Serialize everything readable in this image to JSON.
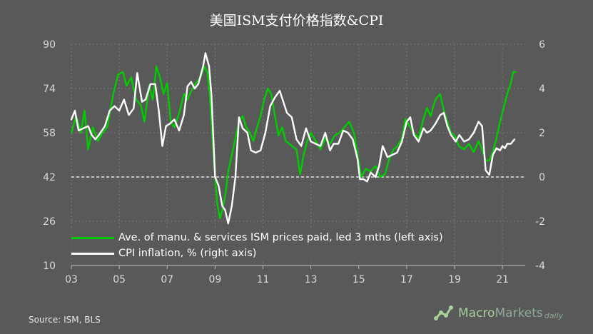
{
  "title": "美国ISM支付价格指数&CPI",
  "source": "Source:  ISM,  BLS",
  "brand": {
    "part1": "Macro",
    "part2": "Markets",
    "part3": "daily"
  },
  "icons": {
    "brand_logo": "line-chart-logo-icon"
  },
  "legend": [
    {
      "label": "Ave. of manu. & services ISM prices paid, led 3 mths (left axis)",
      "color": "#00cc00"
    },
    {
      "label": "CPI inflation,  % (right  axis)",
      "color": "#ffffff"
    }
  ],
  "chart_data": {
    "type": "line",
    "title": "美国ISM支付价格指数&CPI",
    "x_range": [
      2003.0,
      2021.95
    ],
    "x_ticks": [
      2003,
      2005,
      2007,
      2009,
      2011,
      2013,
      2015,
      2017,
      2019,
      2021
    ],
    "x_tick_labels": [
      "03",
      "05",
      "07",
      "09",
      "11",
      "13",
      "15",
      "17",
      "19",
      "21"
    ],
    "y_left": {
      "range": [
        10,
        90
      ],
      "ticks": [
        10,
        26,
        42,
        58,
        74,
        90
      ]
    },
    "y_right": {
      "range": [
        -4,
        6
      ],
      "ticks": [
        -4,
        -2,
        0,
        2,
        4,
        6
      ]
    },
    "zero_line_right": 0,
    "grid": true,
    "legend_position": "bottom-left",
    "series": [
      {
        "name": "Ave. of manu. & services ISM prices paid, led 3 mths (left axis)",
        "axis": "left",
        "color": "#00cc00",
        "points": [
          [
            2003.0,
            58
          ],
          [
            2003.2,
            64
          ],
          [
            2003.4,
            58
          ],
          [
            2003.55,
            66
          ],
          [
            2003.7,
            52
          ],
          [
            2003.9,
            60
          ],
          [
            2004.1,
            55
          ],
          [
            2004.3,
            58
          ],
          [
            2004.5,
            60
          ],
          [
            2004.75,
            72
          ],
          [
            2004.95,
            79
          ],
          [
            2005.15,
            80
          ],
          [
            2005.3,
            75
          ],
          [
            2005.5,
            78
          ],
          [
            2005.7,
            70
          ],
          [
            2005.9,
            68
          ],
          [
            2006.05,
            62
          ],
          [
            2006.25,
            75
          ],
          [
            2006.4,
            70
          ],
          [
            2006.55,
            82
          ],
          [
            2006.7,
            78
          ],
          [
            2006.85,
            72
          ],
          [
            2007.0,
            76
          ],
          [
            2007.15,
            62
          ],
          [
            2007.3,
            60
          ],
          [
            2007.5,
            65
          ],
          [
            2007.7,
            72
          ],
          [
            2007.85,
            70
          ],
          [
            2008.0,
            73
          ],
          [
            2008.2,
            76
          ],
          [
            2008.4,
            78
          ],
          [
            2008.55,
            82
          ],
          [
            2008.68,
            80
          ],
          [
            2008.78,
            72
          ],
          [
            2008.9,
            55
          ],
          [
            2009.0,
            42
          ],
          [
            2009.1,
            32
          ],
          [
            2009.2,
            27
          ],
          [
            2009.3,
            30
          ],
          [
            2009.42,
            35
          ],
          [
            2009.55,
            44
          ],
          [
            2009.7,
            50
          ],
          [
            2009.85,
            56
          ],
          [
            2010.0,
            62
          ],
          [
            2010.15,
            64
          ],
          [
            2010.3,
            60
          ],
          [
            2010.45,
            58
          ],
          [
            2010.6,
            55
          ],
          [
            2010.75,
            60
          ],
          [
            2010.9,
            64
          ],
          [
            2011.05,
            70
          ],
          [
            2011.2,
            74
          ],
          [
            2011.35,
            72
          ],
          [
            2011.5,
            64
          ],
          [
            2011.65,
            57
          ],
          [
            2011.8,
            60
          ],
          [
            2011.95,
            55
          ],
          [
            2012.1,
            54
          ],
          [
            2012.25,
            53
          ],
          [
            2012.4,
            52
          ],
          [
            2012.55,
            43
          ],
          [
            2012.7,
            50
          ],
          [
            2012.85,
            55
          ],
          [
            2013.0,
            58
          ],
          [
            2013.2,
            55
          ],
          [
            2013.4,
            52
          ],
          [
            2013.6,
            56
          ],
          [
            2013.8,
            54
          ],
          [
            2014.0,
            57
          ],
          [
            2014.2,
            58
          ],
          [
            2014.4,
            60
          ],
          [
            2014.6,
            62
          ],
          [
            2014.8,
            58
          ],
          [
            2014.95,
            50
          ],
          [
            2015.1,
            42
          ],
          [
            2015.3,
            45
          ],
          [
            2015.5,
            44
          ],
          [
            2015.7,
            46
          ],
          [
            2015.9,
            42
          ],
          [
            2016.1,
            43
          ],
          [
            2016.25,
            48
          ],
          [
            2016.45,
            52
          ],
          [
            2016.6,
            53
          ],
          [
            2016.8,
            56
          ],
          [
            2016.95,
            63
          ],
          [
            2017.15,
            60
          ],
          [
            2017.3,
            58
          ],
          [
            2017.5,
            56
          ],
          [
            2017.7,
            63
          ],
          [
            2017.85,
            67
          ],
          [
            2018.0,
            64
          ],
          [
            2018.2,
            70
          ],
          [
            2018.4,
            72
          ],
          [
            2018.55,
            66
          ],
          [
            2018.7,
            62
          ],
          [
            2018.85,
            58
          ],
          [
            2019.0,
            57
          ],
          [
            2019.2,
            53
          ],
          [
            2019.4,
            52
          ],
          [
            2019.6,
            54
          ],
          [
            2019.8,
            51
          ],
          [
            2020.0,
            55
          ],
          [
            2020.15,
            52
          ],
          [
            2020.3,
            48
          ],
          [
            2020.45,
            48
          ],
          [
            2020.6,
            51
          ],
          [
            2020.75,
            56
          ],
          [
            2020.9,
            62
          ],
          [
            2021.05,
            67
          ],
          [
            2021.2,
            72
          ],
          [
            2021.35,
            76
          ],
          [
            2021.45,
            80
          ],
          [
            2021.55,
            80
          ]
        ]
      },
      {
        "name": "CPI inflation,  % (right  axis)",
        "axis": "right",
        "color": "#ffffff",
        "points": [
          [
            2003.0,
            2.6
          ],
          [
            2003.15,
            3.0
          ],
          [
            2003.3,
            2.1
          ],
          [
            2003.5,
            2.2
          ],
          [
            2003.7,
            2.3
          ],
          [
            2003.85,
            1.9
          ],
          [
            2004.0,
            1.7
          ],
          [
            2004.15,
            1.9
          ],
          [
            2004.4,
            2.3
          ],
          [
            2004.6,
            3.0
          ],
          [
            2004.8,
            3.2
          ],
          [
            2005.0,
            3.0
          ],
          [
            2005.2,
            3.5
          ],
          [
            2005.4,
            2.8
          ],
          [
            2005.6,
            3.1
          ],
          [
            2005.75,
            4.7
          ],
          [
            2005.95,
            3.4
          ],
          [
            2006.1,
            3.5
          ],
          [
            2006.3,
            4.2
          ],
          [
            2006.5,
            4.2
          ],
          [
            2006.65,
            3.0
          ],
          [
            2006.8,
            1.4
          ],
          [
            2006.95,
            2.3
          ],
          [
            2007.1,
            2.4
          ],
          [
            2007.3,
            2.6
          ],
          [
            2007.5,
            2.1
          ],
          [
            2007.7,
            2.8
          ],
          [
            2007.85,
            4.1
          ],
          [
            2008.0,
            4.3
          ],
          [
            2008.15,
            4.0
          ],
          [
            2008.3,
            4.2
          ],
          [
            2008.5,
            5.0
          ],
          [
            2008.6,
            5.6
          ],
          [
            2008.75,
            5.0
          ],
          [
            2008.85,
            3.7
          ],
          [
            2009.0,
            0.0
          ],
          [
            2009.15,
            -0.4
          ],
          [
            2009.3,
            -1.3
          ],
          [
            2009.42,
            -1.5
          ],
          [
            2009.55,
            -2.1
          ],
          [
            2009.7,
            -1.3
          ],
          [
            2009.85,
            0.0
          ],
          [
            2010.0,
            2.7
          ],
          [
            2010.15,
            2.2
          ],
          [
            2010.35,
            2.0
          ],
          [
            2010.5,
            1.2
          ],
          [
            2010.7,
            1.1
          ],
          [
            2010.9,
            1.2
          ],
          [
            2011.1,
            2.0
          ],
          [
            2011.3,
            3.2
          ],
          [
            2011.5,
            3.6
          ],
          [
            2011.7,
            3.9
          ],
          [
            2011.85,
            3.4
          ],
          [
            2012.0,
            2.9
          ],
          [
            2012.2,
            2.7
          ],
          [
            2012.4,
            1.7
          ],
          [
            2012.6,
            1.4
          ],
          [
            2012.8,
            2.2
          ],
          [
            2013.0,
            1.6
          ],
          [
            2013.2,
            1.5
          ],
          [
            2013.4,
            1.4
          ],
          [
            2013.6,
            2.0
          ],
          [
            2013.8,
            1.2
          ],
          [
            2013.95,
            1.5
          ],
          [
            2014.15,
            1.5
          ],
          [
            2014.35,
            2.1
          ],
          [
            2014.55,
            2.0
          ],
          [
            2014.75,
            1.7
          ],
          [
            2014.95,
            0.8
          ],
          [
            2015.05,
            -0.1
          ],
          [
            2015.2,
            -0.1
          ],
          [
            2015.35,
            -0.2
          ],
          [
            2015.5,
            0.2
          ],
          [
            2015.7,
            0.0
          ],
          [
            2015.85,
            0.5
          ],
          [
            2016.0,
            1.4
          ],
          [
            2016.2,
            0.9
          ],
          [
            2016.4,
            1.0
          ],
          [
            2016.6,
            1.1
          ],
          [
            2016.8,
            1.6
          ],
          [
            2017.0,
            2.5
          ],
          [
            2017.15,
            2.7
          ],
          [
            2017.3,
            1.9
          ],
          [
            2017.5,
            1.6
          ],
          [
            2017.7,
            2.2
          ],
          [
            2017.85,
            2.0
          ],
          [
            2018.0,
            2.1
          ],
          [
            2018.2,
            2.4
          ],
          [
            2018.4,
            2.8
          ],
          [
            2018.55,
            2.9
          ],
          [
            2018.7,
            2.3
          ],
          [
            2018.85,
            1.9
          ],
          [
            2019.05,
            1.6
          ],
          [
            2019.2,
            1.9
          ],
          [
            2019.4,
            1.6
          ],
          [
            2019.6,
            1.7
          ],
          [
            2019.8,
            2.0
          ],
          [
            2020.0,
            2.5
          ],
          [
            2020.15,
            2.3
          ],
          [
            2020.3,
            0.3
          ],
          [
            2020.45,
            0.1
          ],
          [
            2020.6,
            1.0
          ],
          [
            2020.75,
            1.3
          ],
          [
            2020.9,
            1.2
          ],
          [
            2021.0,
            1.4
          ],
          [
            2021.1,
            1.3
          ],
          [
            2021.2,
            1.5
          ],
          [
            2021.35,
            1.5
          ],
          [
            2021.5,
            1.7
          ]
        ]
      }
    ]
  }
}
